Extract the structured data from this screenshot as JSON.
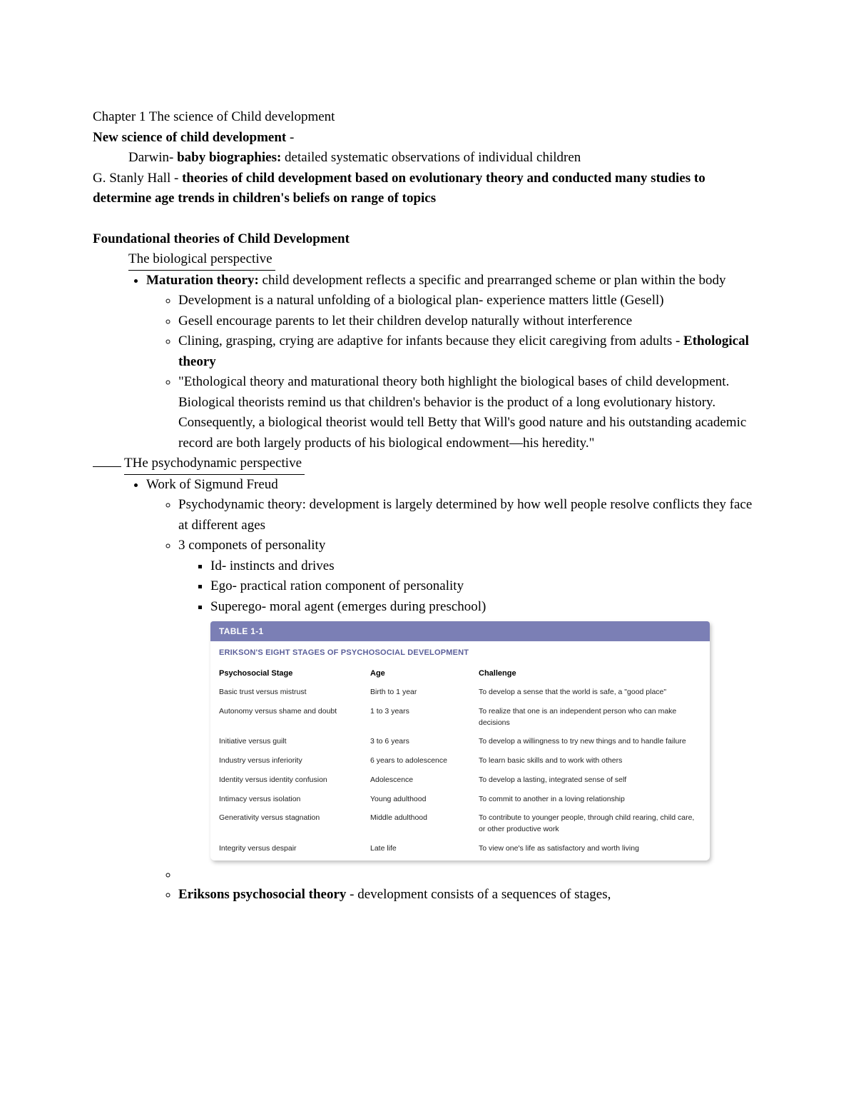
{
  "chapterLine": "Chapter 1 The science of Child development",
  "line2_a": "New science of child development",
  "line2_b": " -",
  "line3_pre": "Darwin- ",
  "line3_b": "baby biographies:",
  "line3_after": " detailed systematic observations of individual children",
  "line4_pre": "G. Stanly Hall - ",
  "line4_b": "theories of child development based on evolutionary theory and conducted many studies to determine age trends in children's beliefs on range of topics",
  "foundHeading": "Foundational theories of Child Development",
  "bioPerspective": "The biological perspective",
  "maturation_b": "Maturation theory:",
  "maturation_txt": " child development reflects a specific and prearranged scheme or plan within the body",
  "bio_sub1": "Development is a natural unfolding of a biological plan- experience matters little (Gesell)",
  "bio_sub2": "Gesell encourage parents to let their children develop naturally without interference",
  "bio_sub3_pre": "Clining, grasping, crying are adaptive for infants because they elicit caregiving from adults - ",
  "bio_sub3_b": "Ethological theory",
  "bio_sub4": "\"Ethological theory and maturational theory both highlight the biological bases of child development. Biological theorists remind us that children's behavior is the product of a long evolutionary history. Consequently, a biological theorist would tell Betty that Will's good nature and his outstanding academic record are both largely products of his biological endowment—his heredity.\"",
  "psychoPerspective": "THe psychodynamic perspective",
  "freud": "Work of Sigmund Freud",
  "psy_sub1": "Psychodynamic theory: development is largely determined by how well people resolve conflicts they face at different ages",
  "psy_sub2": "3 componets of personality",
  "comp1": "Id- instincts and drives",
  "comp2": "Ego- practical ration component of personality",
  "comp3": "Superego- moral agent (emerges during preschool)",
  "erikson_b": "Eriksons psychosocial theory",
  "erikson_txt": " - development consists of a sequences of stages,",
  "table": {
    "header": "TABLE 1-1",
    "title": "ERIKSON'S EIGHT STAGES OF PSYCHOSOCIAL DEVELOPMENT",
    "cols": [
      "Psychosocial Stage",
      "Age",
      "Challenge"
    ],
    "rows": [
      [
        "Basic trust versus mistrust",
        "Birth to 1 year",
        "To develop a sense that the world is safe, a \"good place\""
      ],
      [
        "Autonomy versus shame and doubt",
        "1 to 3 years",
        "To realize that one is an independent person who can make decisions"
      ],
      [
        "Initiative versus guilt",
        "3 to 6 years",
        "To develop a willingness to try new things and to handle failure"
      ],
      [
        "Industry versus inferiority",
        "6 years to adolescence",
        "To learn basic skills and to work with others"
      ],
      [
        "Identity versus identity confusion",
        "Adolescence",
        "To develop a lasting, integrated sense of self"
      ],
      [
        "Intimacy versus isolation",
        "Young adulthood",
        "To commit to another in a loving relationship"
      ],
      [
        "Generativity versus stagnation",
        "Middle adulthood",
        "To contribute to younger people, through child rearing, child care, or other productive work"
      ],
      [
        "Integrity versus despair",
        "Late life",
        "To view one's life as satisfactory and worth living"
      ]
    ],
    "colors": {
      "headerBg": "#7b7fb5",
      "headerText": "#ffffff",
      "titleText": "#5b5f9a",
      "bodyText": "#222222"
    }
  }
}
